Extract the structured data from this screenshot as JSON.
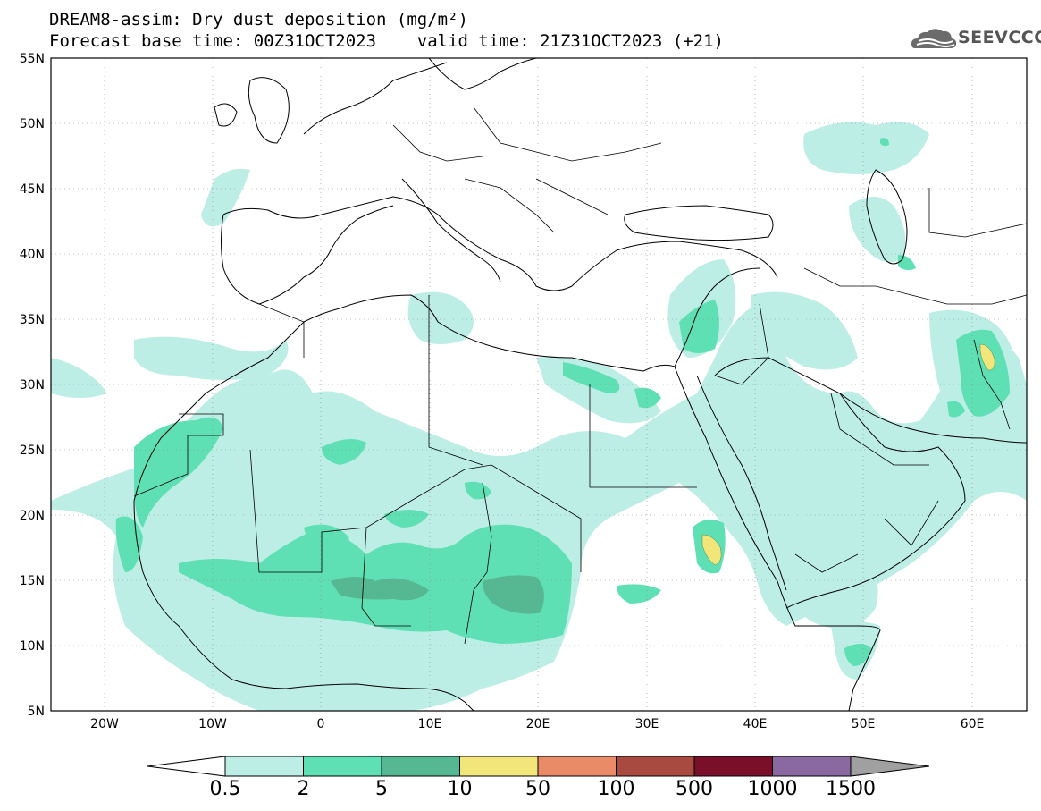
{
  "header": {
    "title_line1": "DREAM8-assim: Dry dust deposition (mg/m²)",
    "title_line2": "Forecast base time: 00Z31OCT2023    valid time: 21Z31OCT2023 (+21)",
    "logo_text": "SEEVCCC"
  },
  "map": {
    "lat_labels": [
      "55N",
      "50N",
      "45N",
      "40N",
      "35N",
      "30N",
      "25N",
      "20N",
      "15N",
      "10N",
      "5N"
    ],
    "lon_labels": [
      "20W",
      "10W",
      "0",
      "10E",
      "20E",
      "30E",
      "40E",
      "50E",
      "60E"
    ]
  },
  "colorbar": {
    "labels": [
      "0.5",
      "2",
      "5",
      "10",
      "50",
      "100",
      "500",
      "1000",
      "1500"
    ],
    "colors": [
      "#bdeee6",
      "#5fe0b4",
      "#56b893",
      "#f2e67a",
      "#e88b66",
      "#a84a3f",
      "#7a0f2a",
      "#8a68a0",
      "#a0a0a0"
    ]
  },
  "colors": {
    "light": "#bdeee6",
    "medium": "#5fe0b4",
    "dark": "#56b893",
    "yellow": "#f2e67a"
  }
}
